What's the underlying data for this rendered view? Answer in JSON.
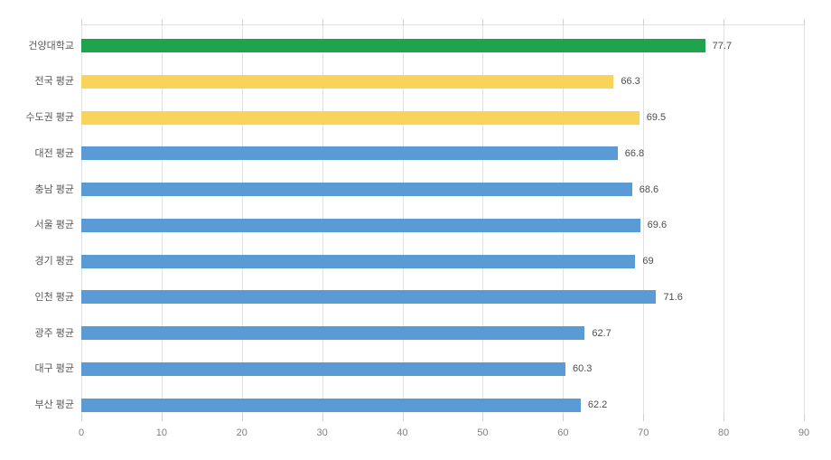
{
  "chart_data": {
    "type": "bar",
    "orientation": "horizontal",
    "title": "",
    "xlabel": "",
    "ylabel": "",
    "categories": [
      "건양대학교",
      "전국 평균",
      "수도권 평균",
      "대전 평균",
      "충남 평균",
      "서울 평균",
      "경기 평균",
      "인천 평균",
      "광주 평균",
      "대구 평균",
      "부산 평균"
    ],
    "values": [
      77.7,
      66.3,
      69.5,
      66.8,
      68.6,
      69.6,
      69,
      71.6,
      62.7,
      60.3,
      62.2
    ],
    "value_labels": [
      "77.7",
      "66.3",
      "69.5",
      "66.8",
      "68.6",
      "69.6",
      "69",
      "71.6",
      "62.7",
      "60.3",
      "62.2"
    ],
    "bar_color_keys": [
      "green",
      "yellow",
      "yellow",
      "blue",
      "blue",
      "blue",
      "blue",
      "blue",
      "blue",
      "blue",
      "blue"
    ],
    "xlim": [
      0,
      90
    ],
    "x_ticks": [
      0,
      10,
      20,
      30,
      40,
      50,
      60,
      70,
      80,
      90
    ],
    "grid": true,
    "legend": "none"
  },
  "theme": {
    "bar_colors": {
      "green": "#1fa44d",
      "yellow": "#fad45a",
      "blue": "#5b9bd5"
    },
    "gridline_color": "#e2e2e2",
    "tick_color": "#d0d0d0",
    "axis_label_color": "#808080",
    "category_label_color": "#595959",
    "value_label_color": "#4d4d4d",
    "background_color": "#ffffff"
  }
}
